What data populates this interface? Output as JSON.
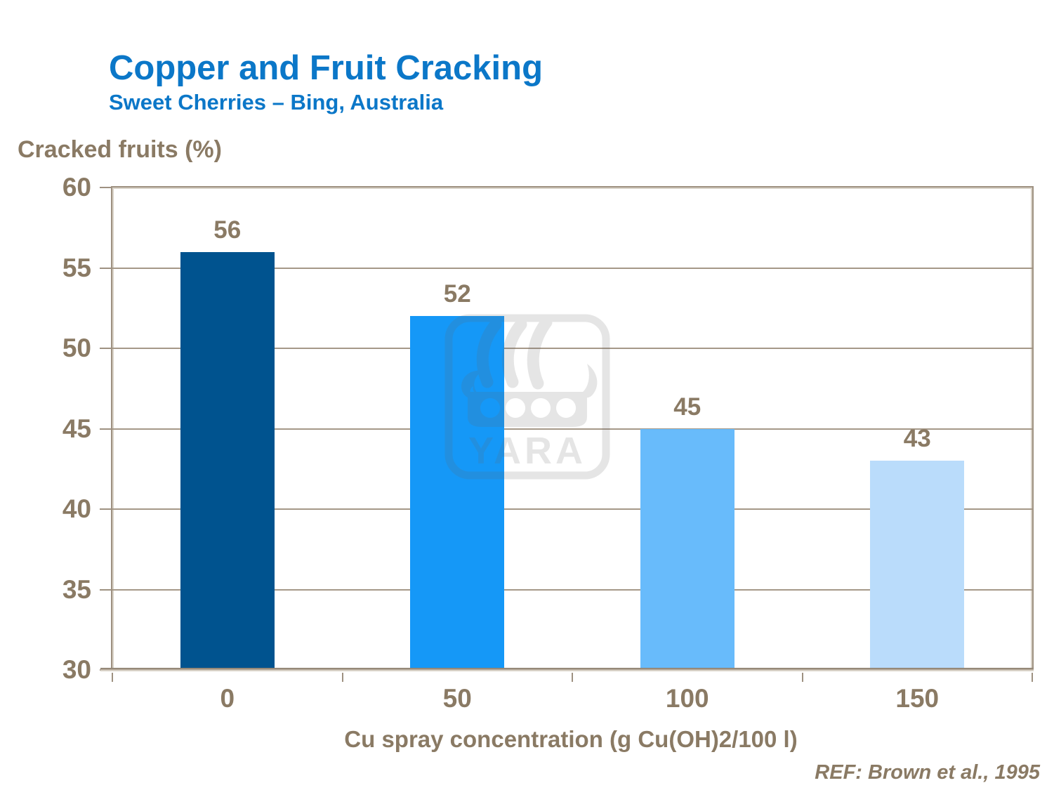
{
  "slide": {
    "title": "Copper and Fruit Cracking",
    "subtitle": "Sweet Cherries – Bing, Australia",
    "reference": "REF: Brown et al., 1995",
    "watermark_text": "YARA"
  },
  "colors": {
    "title_blue": "#0b77c8",
    "text_brown": "#8a7a64",
    "axis_line": "#9e9181",
    "gridline": "#a59888",
    "bar_colors": [
      "#00538f",
      "#1598f7",
      "#68bbfb",
      "#badcfb"
    ]
  },
  "chart_data": {
    "type": "bar",
    "title": "Copper and Fruit Cracking",
    "subtitle": "Sweet Cherries – Bing, Australia",
    "categories": [
      "0",
      "50",
      "100",
      "150"
    ],
    "values": [
      56,
      52,
      45,
      43
    ],
    "series": [
      {
        "name": "Cracked fruits (%)",
        "values": [
          56,
          52,
          45,
          43
        ]
      }
    ],
    "xlabel": "Cu spray concentration (g Cu(OH)2/100 l)",
    "ylabel": "Cracked fruits (%)",
    "ylim": [
      30,
      60
    ],
    "yticks": [
      60,
      55,
      50,
      45,
      40,
      35,
      30
    ],
    "grid": "horizontal",
    "legend_position": "none",
    "bar_colors": [
      "#00538f",
      "#1598f7",
      "#68bbfb",
      "#badcfb"
    ],
    "annotation": "REF: Brown et al., 1995"
  }
}
